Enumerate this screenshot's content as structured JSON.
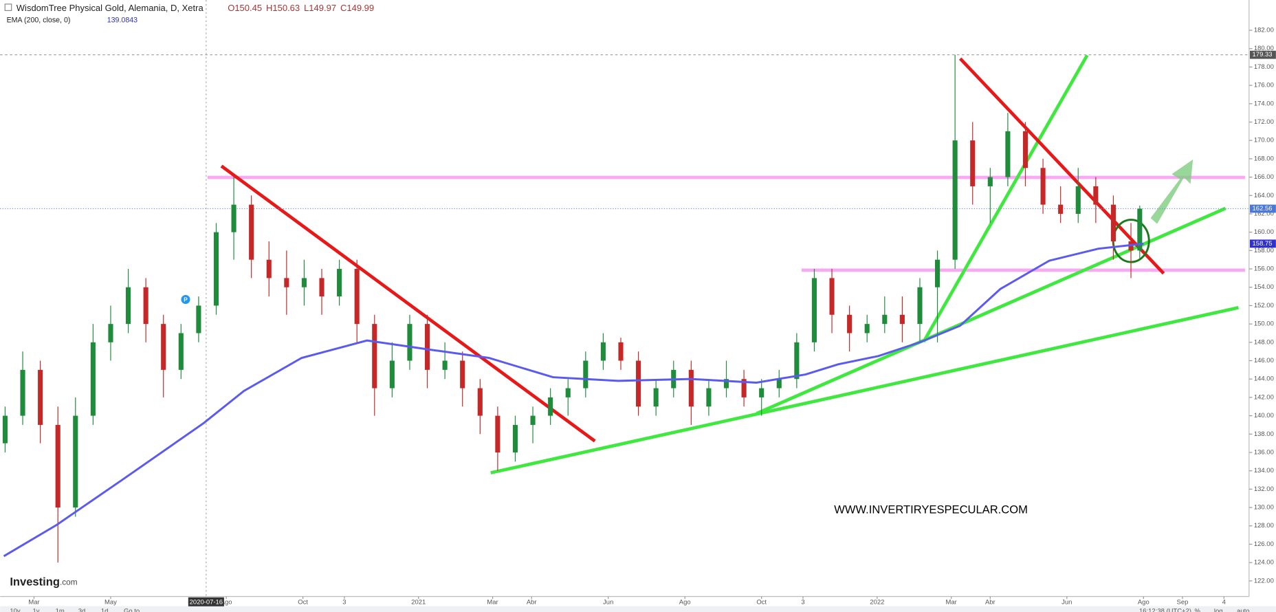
{
  "chart_data": {
    "type": "candlestick",
    "title": "WisdomTree Physical Gold, Alemania, D, Xetra",
    "legend_ohlc": [
      "O150.45",
      "H150.63",
      "L149.97",
      "C149.99"
    ],
    "indicator_name": "EMA (200, close, 0)",
    "indicator_value": "139.0843",
    "event_marker": "P",
    "brand": "Investing",
    "brand_suffix": ".com",
    "watermark": "WWW.INVERTIRYESPECULAR.COM",
    "crosshair_x": "2020-07-16",
    "high_line": 179.33,
    "last_price": 162.56,
    "ema_last": 158.75,
    "toolbar": [
      "10y",
      "1y",
      "1m",
      "3d",
      "1d",
      "Go to"
    ],
    "status": [
      "16:12:38 (UTC+2)",
      "%",
      "log",
      "auto"
    ],
    "grid": false,
    "up_color": "#1e8c3a",
    "down_color": "#c62828",
    "xlim": [
      "2020-02-03",
      "2022-10-24"
    ],
    "ylim": [
      120.3,
      185.3
    ],
    "xticks": [
      {
        "value": "2020-03-01",
        "label": "Mar"
      },
      {
        "value": "2020-05-01",
        "label": "May"
      },
      {
        "value": "2020-08-01",
        "label": "Ago"
      },
      {
        "value": "2020-10-01",
        "label": "Oct"
      },
      {
        "value": "2020-11-03",
        "label": "3"
      },
      {
        "value": "2021-01-01",
        "label": "2021"
      },
      {
        "value": "2021-03-01",
        "label": "Mar"
      },
      {
        "value": "2021-04-01",
        "label": "Abr"
      },
      {
        "value": "2021-06-01",
        "label": "Jun"
      },
      {
        "value": "2021-08-01",
        "label": "Ago"
      },
      {
        "value": "2021-10-01",
        "label": "Oct"
      },
      {
        "value": "2021-11-03",
        "label": "3"
      },
      {
        "value": "2022-01-01",
        "label": "2022"
      },
      {
        "value": "2022-03-01",
        "label": "Mar"
      },
      {
        "value": "2022-04-01",
        "label": "Abr"
      },
      {
        "value": "2022-06-01",
        "label": "Jun"
      },
      {
        "value": "2022-08-01",
        "label": "Ago"
      },
      {
        "value": "2022-09-01",
        "label": "Sep"
      },
      {
        "value": "2022-10-04",
        "label": "4"
      }
    ],
    "yticks": [
      {
        "value": 122,
        "label": "122.00"
      },
      {
        "value": 124,
        "label": "124.00"
      },
      {
        "value": 126,
        "label": "126.00"
      },
      {
        "value": 128,
        "label": "128.00"
      },
      {
        "value": 130,
        "label": "130.00"
      },
      {
        "value": 132,
        "label": "132.00"
      },
      {
        "value": 134,
        "label": "134.00"
      },
      {
        "value": 136,
        "label": "136.00"
      },
      {
        "value": 138,
        "label": "138.00"
      },
      {
        "value": 140,
        "label": "140.00"
      },
      {
        "value": 142,
        "label": "142.00"
      },
      {
        "value": 144,
        "label": "144.00"
      },
      {
        "value": 146,
        "label": "146.00"
      },
      {
        "value": 148,
        "label": "148.00"
      },
      {
        "value": 150,
        "label": "150.00"
      },
      {
        "value": 152,
        "label": "152.00"
      },
      {
        "value": 154,
        "label": "154.00"
      },
      {
        "value": 156,
        "label": "156.00"
      },
      {
        "value": 158,
        "label": "158.00"
      },
      {
        "value": 160,
        "label": "160.00"
      },
      {
        "value": 162,
        "label": "162.00"
      },
      {
        "value": 164,
        "label": "164.00"
      },
      {
        "value": 166,
        "label": "166.00"
      },
      {
        "value": 168,
        "label": "168.00"
      },
      {
        "value": 170,
        "label": "170.00"
      },
      {
        "value": 172,
        "label": "172.00"
      },
      {
        "value": 174,
        "label": "174.00"
      },
      {
        "value": 176,
        "label": "176.00"
      },
      {
        "value": 178,
        "label": "178.00"
      },
      {
        "value": 180,
        "label": "180.00"
      },
      {
        "value": 182,
        "label": "182.00"
      }
    ],
    "x": [
      "2020-02-07",
      "2020-02-21",
      "2020-03-06",
      "2020-03-20",
      "2020-04-03",
      "2020-04-17",
      "2020-05-01",
      "2020-05-15",
      "2020-05-29",
      "2020-06-12",
      "2020-06-26",
      "2020-07-10",
      "2020-07-24",
      "2020-08-07",
      "2020-08-21",
      "2020-09-04",
      "2020-09-18",
      "2020-10-02",
      "2020-10-16",
      "2020-10-30",
      "2020-11-13",
      "2020-11-27",
      "2020-12-11",
      "2020-12-25",
      "2021-01-08",
      "2021-01-22",
      "2021-02-05",
      "2021-02-19",
      "2021-03-05",
      "2021-03-19",
      "2021-04-02",
      "2021-04-16",
      "2021-04-30",
      "2021-05-14",
      "2021-05-28",
      "2021-06-11",
      "2021-06-25",
      "2021-07-09",
      "2021-07-23",
      "2021-08-06",
      "2021-08-20",
      "2021-09-03",
      "2021-09-17",
      "2021-10-01",
      "2021-10-15",
      "2021-10-29",
      "2021-11-12",
      "2021-11-26",
      "2021-12-10",
      "2021-12-24",
      "2022-01-07",
      "2022-01-21",
      "2022-02-04",
      "2022-02-18",
      "2022-03-04",
      "2022-03-18",
      "2022-04-01",
      "2022-04-15",
      "2022-04-29",
      "2022-05-13",
      "2022-05-27",
      "2022-06-10",
      "2022-06-24",
      "2022-07-08",
      "2022-07-22",
      "2022-07-29"
    ],
    "open": [
      137,
      140,
      145,
      139,
      130,
      140,
      148,
      150,
      154,
      150,
      145,
      149,
      152,
      160,
      163,
      157,
      155,
      154,
      155,
      153,
      156,
      150,
      143,
      146,
      150,
      145,
      146,
      143,
      140,
      136,
      139,
      140,
      142,
      143,
      146,
      148,
      146,
      141,
      143,
      145,
      141,
      143,
      144,
      142,
      143,
      144,
      148,
      155,
      151,
      149,
      150,
      151,
      150,
      154,
      157,
      170,
      165,
      166,
      171,
      167,
      163,
      162,
      165,
      163,
      159,
      158
    ],
    "high": [
      141,
      147,
      146,
      141,
      142,
      150,
      152,
      156,
      155,
      151,
      150,
      153,
      161,
      166,
      164,
      159,
      158,
      157,
      156,
      157,
      157,
      151,
      148,
      151,
      151,
      148,
      147,
      144,
      141,
      140,
      141,
      143,
      144,
      147,
      149,
      148.5,
      147,
      144,
      146,
      146,
      144,
      146,
      145,
      144,
      145,
      149,
      156,
      156,
      152,
      151,
      153,
      153,
      155,
      158,
      179.33,
      172,
      167,
      173,
      172,
      168,
      165,
      167,
      166,
      164,
      161,
      162.9
    ],
    "low": [
      136,
      139,
      137,
      124,
      129,
      139,
      146,
      149,
      148,
      142,
      144,
      148,
      151,
      157,
      155,
      153,
      151,
      152,
      151,
      152,
      148,
      140,
      142,
      145,
      143,
      144,
      141,
      138,
      134,
      135,
      137,
      139,
      140,
      142,
      145,
      145,
      140,
      140,
      142,
      139,
      140,
      142,
      141,
      140,
      142,
      143,
      147,
      149,
      147,
      148,
      149,
      148,
      148,
      148,
      156,
      163,
      161,
      165,
      165,
      162,
      161,
      161,
      161,
      157,
      155,
      157
    ],
    "close": [
      140,
      145,
      139,
      130,
      140,
      148,
      150,
      154,
      150,
      145,
      149,
      152,
      160,
      163,
      157,
      155,
      154,
      155,
      153,
      156,
      150,
      143,
      146,
      150,
      145,
      146,
      143,
      140,
      136,
      139,
      140,
      142,
      143,
      146,
      148,
      146,
      141,
      143,
      145,
      141,
      143,
      144,
      142,
      143,
      144,
      148,
      155,
      151,
      149,
      150,
      151,
      150,
      154,
      157,
      170,
      165,
      166,
      171,
      167,
      163,
      162,
      165,
      163,
      159,
      158,
      162.56
    ],
    "ema_color": "#5a5af0",
    "ema_x": [
      "2020-02-06",
      "2020-03-19",
      "2020-05-10",
      "2020-07-14",
      "2020-08-15",
      "2020-09-30",
      "2020-11-21",
      "2021-01-05",
      "2021-02-26",
      "2021-04-18",
      "2021-06-09",
      "2021-08-06",
      "2021-09-27",
      "2021-11-05",
      "2021-12-01",
      "2022-01-02",
      "2022-02-04",
      "2022-03-08",
      "2022-04-09",
      "2022-05-18",
      "2022-06-26",
      "2022-08-01"
    ],
    "ema_values": [
      124.7,
      128.1,
      133,
      139.2,
      142.7,
      146.3,
      148.2,
      147.3,
      146.3,
      144.2,
      143.8,
      144,
      143.6,
      144.5,
      145.6,
      146.5,
      148,
      149.8,
      153.8,
      156.9,
      158.2,
      158.75
    ]
  }
}
